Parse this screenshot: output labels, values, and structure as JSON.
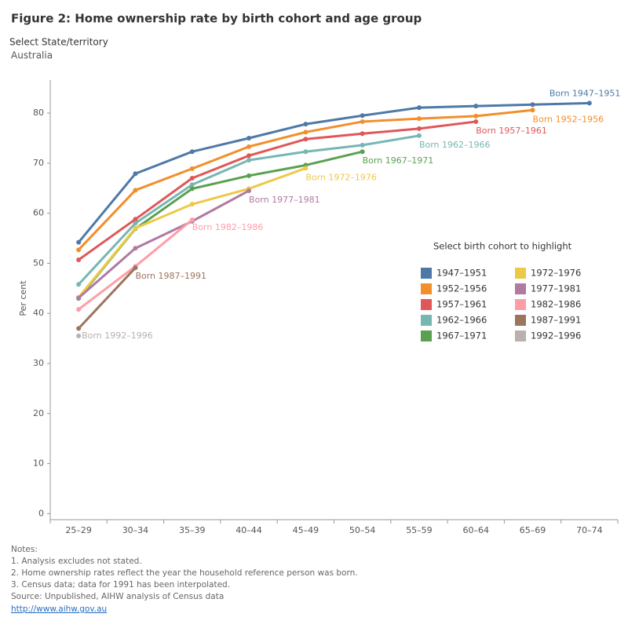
{
  "header": {
    "title": "Figure 2: Home ownership rate by birth cohort and age group",
    "filter_label": "Select State/territory",
    "filter_value": "Australia"
  },
  "chart_data": {
    "type": "line",
    "y_label": "Per cent",
    "categories": [
      "25–29",
      "30–34",
      "35–39",
      "40–44",
      "45–49",
      "50–54",
      "55–59",
      "60–64",
      "65–69",
      "70–74"
    ],
    "ylim": [
      -1.2,
      86.6
    ],
    "yticks": [
      0,
      10,
      20,
      30,
      40,
      50,
      60,
      70,
      80
    ],
    "legend_title": "Select birth cohort to highlight",
    "series": [
      {
        "name": "1947–1951",
        "label": "Born 1947–1951",
        "color": "#4e79a7",
        "values": [
          54.2,
          67.9,
          72.3,
          75.0,
          77.8,
          79.5,
          81.1,
          81.4,
          81.7,
          82.0
        ]
      },
      {
        "name": "1952–1956",
        "label": "Born 1952–1956",
        "color": "#f28e2b",
        "values": [
          52.7,
          64.6,
          68.9,
          73.3,
          76.2,
          78.3,
          78.9,
          79.4,
          80.6,
          null
        ]
      },
      {
        "name": "1957–1961",
        "label": "Born 1957–1961",
        "color": "#e15759",
        "values": [
          50.7,
          58.8,
          67.0,
          71.5,
          74.8,
          75.9,
          76.9,
          78.3,
          null,
          null
        ]
      },
      {
        "name": "1962–1966",
        "label": "Born 1962–1966",
        "color": "#76b7b2",
        "values": [
          45.8,
          58.0,
          65.7,
          70.6,
          72.3,
          73.6,
          75.5,
          null,
          null,
          null
        ]
      },
      {
        "name": "1967–1971",
        "label": "Born 1967–1971",
        "color": "#59a14f",
        "values": [
          43.0,
          56.9,
          64.9,
          67.5,
          69.6,
          72.3,
          null,
          null,
          null,
          null
        ]
      },
      {
        "name": "1972–1976",
        "label": "Born 1972–1976",
        "color": "#edc948",
        "values": [
          43.2,
          57.0,
          61.8,
          64.9,
          69.0,
          null,
          null,
          null,
          null,
          null
        ]
      },
      {
        "name": "1977–1981",
        "label": "Born 1977–1981",
        "color": "#b07aa1",
        "values": [
          43.1,
          53.0,
          58.4,
          64.5,
          null,
          null,
          null,
          null,
          null,
          null
        ]
      },
      {
        "name": "1982–1986",
        "label": "Born 1982–1986",
        "color": "#ff9da7",
        "values": [
          40.8,
          49.4,
          58.7,
          null,
          null,
          null,
          null,
          null,
          null,
          null
        ]
      },
      {
        "name": "1987–1991",
        "label": "Born 1987–1991",
        "color": "#9c755f",
        "values": [
          37.0,
          49.1,
          null,
          null,
          null,
          null,
          null,
          null,
          null,
          null
        ]
      },
      {
        "name": "1992–1996",
        "label": "Born 1992–1996",
        "color": "#bab0ac",
        "values": [
          35.5,
          null,
          null,
          null,
          null,
          null,
          null,
          null,
          null,
          null
        ]
      }
    ]
  },
  "notes": {
    "heading": "Notes:",
    "lines": [
      "1. Analysis excludes not stated.",
      "2. Home ownership rates reflect the year the household reference person was born.",
      "3. Census data; data for 1991 has been interpolated.",
      "Source: Unpublished, AIHW analysis of Census data"
    ],
    "link": "http://www.aihw.gov.au"
  }
}
